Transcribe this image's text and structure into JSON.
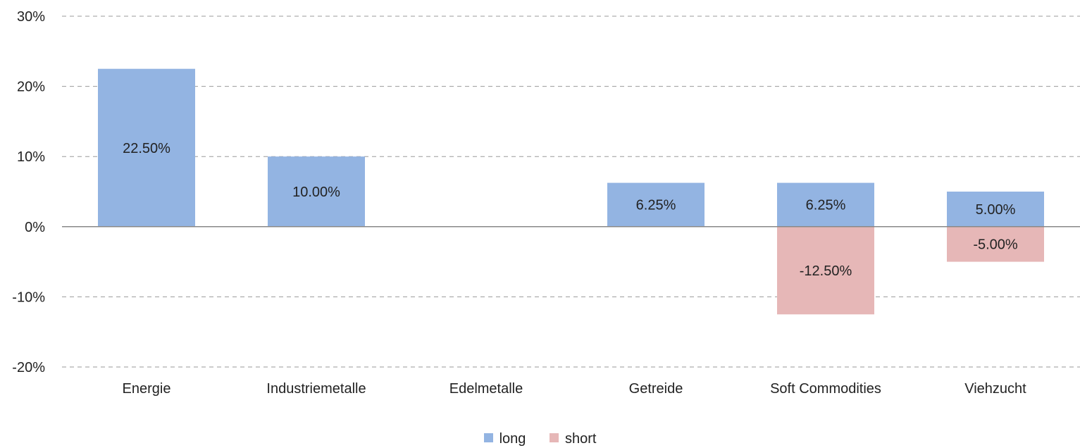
{
  "chart_data": {
    "type": "bar",
    "stacked": true,
    "categories": [
      "Energie",
      "Industriemetalle",
      "Edelmetalle",
      "Getreide",
      "Soft Commodities",
      "Viehzucht"
    ],
    "series": [
      {
        "name": "long",
        "color": "#93B4E2",
        "values": [
          22.5,
          10.0,
          0,
          6.25,
          6.25,
          5.0
        ],
        "labels": [
          "22.50%",
          "10.00%",
          "",
          "6.25%",
          "6.25%",
          "5.00%"
        ]
      },
      {
        "name": "short",
        "color": "#E6B7B7",
        "values": [
          0,
          0,
          0,
          0,
          -12.5,
          -5.0
        ],
        "labels": [
          "",
          "",
          "",
          "",
          "-12.50%",
          "-5.00%"
        ]
      }
    ],
    "ylim": [
      -20,
      30
    ],
    "yticks": [
      30,
      20,
      10,
      0,
      -10,
      -20
    ],
    "ytick_labels": [
      "30%",
      "20%",
      "10%",
      "0%",
      "-10%",
      "-20%"
    ],
    "grid": true,
    "grid_style": "dashed",
    "legend_position": "bottom-center"
  }
}
